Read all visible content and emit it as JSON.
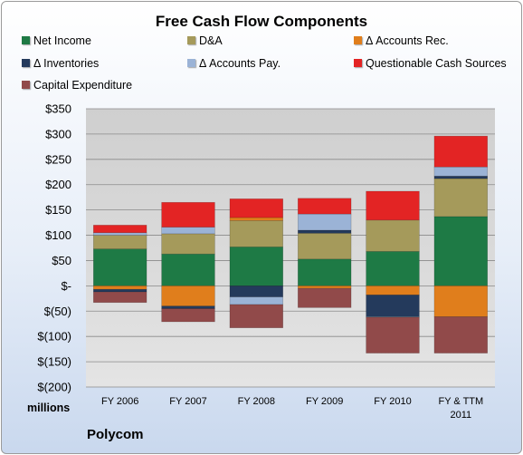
{
  "chart_data": {
    "type": "bar",
    "stacked": true,
    "title": "Free Cash Flow Components",
    "ylabel": "millions",
    "ylim": [
      -200,
      350
    ],
    "yticks": [
      350,
      300,
      250,
      200,
      150,
      100,
      50,
      0,
      -50,
      -100,
      -150,
      -200
    ],
    "yticklabels": [
      "$350",
      "$300",
      "$250",
      "$200",
      "$150",
      "$100",
      "$50",
      "$-",
      "$(50)",
      "$(100)",
      "$(150)",
      "$(200)"
    ],
    "categories": [
      "FY 2006",
      "FY 2007",
      "FY 2008",
      "FY 2009",
      "FY 2010",
      "FY & TTM 2011"
    ],
    "grid": true,
    "legend_position": "top",
    "series": [
      {
        "name": "Net Income",
        "color": "#1e7a45",
        "values": [
          73,
          63,
          77,
          53,
          68,
          137
        ]
      },
      {
        "name": "D&A",
        "color": "#a59a5b",
        "values": [
          27,
          40,
          52,
          51,
          62,
          75
        ]
      },
      {
        "name": "Δ Accounts Rec.",
        "color": "#e07e1c",
        "values": [
          -7,
          -40,
          6,
          -5,
          -18,
          -61
        ]
      },
      {
        "name": "Δ Inventories",
        "color": "#243a5c",
        "values": [
          -5,
          -5,
          -22,
          6,
          -43,
          5
        ]
      },
      {
        "name": "Δ Accounts Pay.",
        "color": "#9bb3d6",
        "values": [
          5,
          13,
          -15,
          32,
          -1,
          18
        ]
      },
      {
        "name": "Questionable Cash Sources",
        "color": "#e32424",
        "values": [
          15,
          49,
          37,
          31,
          57,
          61
        ]
      },
      {
        "name": "Capital Expenditure",
        "color": "#914a4a",
        "values": [
          -21,
          -26,
          -46,
          -38,
          -71,
          -72
        ]
      }
    ]
  },
  "company": "Polycom"
}
